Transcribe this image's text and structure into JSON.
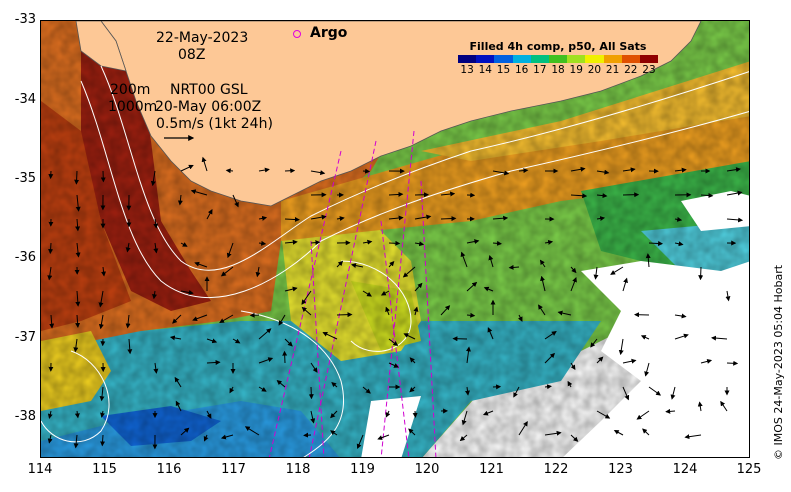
{
  "map": {
    "date_label": "22-May-2023",
    "time_label": "08Z",
    "marker_label": "Argo",
    "contour_label_1": "200m",
    "contour_label_2": "1000m",
    "altimetry_product": "NRT00 GSL",
    "altimetry_time": "20-May 06:00Z",
    "velocity_scale_label": "0.5m/s (1kt 24h)",
    "credit": "© IMOS 24-May-2023 05:04 Hobart",
    "lon_ticks": [
      "114",
      "115",
      "116",
      "117",
      "118",
      "119",
      "120",
      "121",
      "122",
      "123",
      "124",
      "125"
    ],
    "lat_ticks": [
      "-33",
      "-34",
      "-35",
      "-36",
      "-37",
      "-38"
    ],
    "lon_range": [
      114,
      125
    ],
    "lat_range": [
      -38.5,
      -33
    ]
  },
  "legend": {
    "title": "Filled 4h comp, p50, All Sats",
    "ticks": [
      "13",
      "14",
      "15",
      "16",
      "17",
      "18",
      "19",
      "20",
      "21",
      "22",
      "23"
    ],
    "colors": [
      "#000080",
      "#0010c0",
      "#0060e0",
      "#00b0e0",
      "#00c080",
      "#40c020",
      "#a0e020",
      "#f0f000",
      "#f0a000",
      "#e05000",
      "#900000"
    ]
  },
  "colors": {
    "land": "#fdc896",
    "current_vector": "#000000",
    "contour": "#ffffff",
    "track": "#d000d0"
  }
}
